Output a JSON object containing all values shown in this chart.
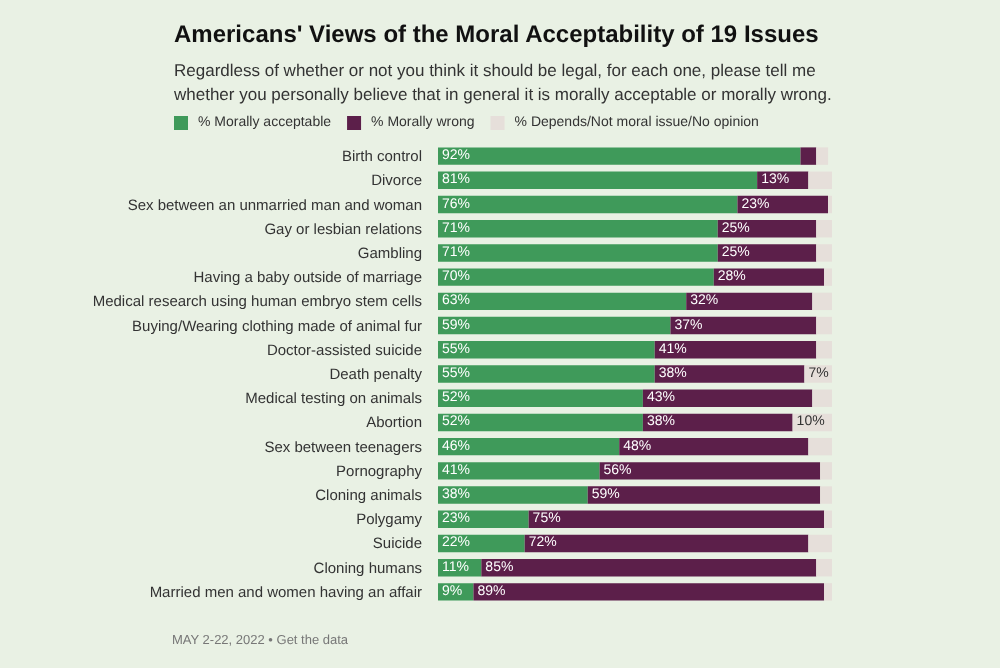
{
  "chart_data": {
    "type": "bar",
    "orientation": "horizontal",
    "stacked": true,
    "title": "Americans' Views of the Moral Acceptability of 19 Issues",
    "subtitle": "Regardless of whether or not you think it should be legal, for each one, please tell me whether you personally believe that in general it is morally acceptable or morally wrong.",
    "legend": "top left",
    "categories": [
      "Birth control",
      "Divorce",
      "Sex between an unmarried man and woman",
      "Gay or lesbian relations",
      "Gambling",
      "Having a baby outside of marriage",
      "Medical research using human embryo stem cells",
      "Buying/Wearing clothing made of animal fur",
      "Doctor-assisted suicide",
      "Death penalty",
      "Medical testing on animals",
      "Abortion",
      "Sex between teenagers",
      "Pornography",
      "Cloning animals",
      "Polygamy",
      "Suicide",
      "Cloning humans",
      "Married men and women having an affair"
    ],
    "series": [
      {
        "name": "% Morally acceptable",
        "color": "#3f9a5a",
        "values": [
          92,
          81,
          76,
          71,
          71,
          70,
          63,
          59,
          55,
          55,
          52,
          52,
          46,
          41,
          38,
          23,
          22,
          11,
          9
        ],
        "value_labels": [
          "92%",
          "81%",
          "76%",
          "71%",
          "71%",
          "70%",
          "63%",
          "59%",
          "55%",
          "55%",
          "52%",
          "52%",
          "46%",
          "41%",
          "38%",
          "23%",
          "22%",
          "11%",
          "9%"
        ]
      },
      {
        "name": "% Morally wrong",
        "color": "#5c1f4a",
        "values": [
          4,
          13,
          23,
          25,
          25,
          28,
          32,
          37,
          41,
          38,
          43,
          38,
          48,
          56,
          59,
          75,
          72,
          85,
          89
        ],
        "value_labels": [
          null,
          "13%",
          "23%",
          "25%",
          "25%",
          "28%",
          "32%",
          "37%",
          "41%",
          "38%",
          "43%",
          "38%",
          "48%",
          "56%",
          "59%",
          "75%",
          "72%",
          "85%",
          "89%"
        ]
      },
      {
        "name": "% Depends/Not moral issue/No opinion",
        "color": "#e6dfda",
        "values": [
          3,
          6,
          1,
          4,
          4,
          2,
          5,
          4,
          4,
          7,
          5,
          10,
          6,
          3,
          3,
          2,
          6,
          4,
          2
        ],
        "value_labels": [
          null,
          null,
          null,
          null,
          null,
          null,
          null,
          null,
          null,
          "7%",
          null,
          "10%",
          null,
          null,
          null,
          null,
          null,
          null,
          null
        ]
      }
    ],
    "annotations": [
      "MAY 2-22, 2022 • Get the data"
    ]
  }
}
